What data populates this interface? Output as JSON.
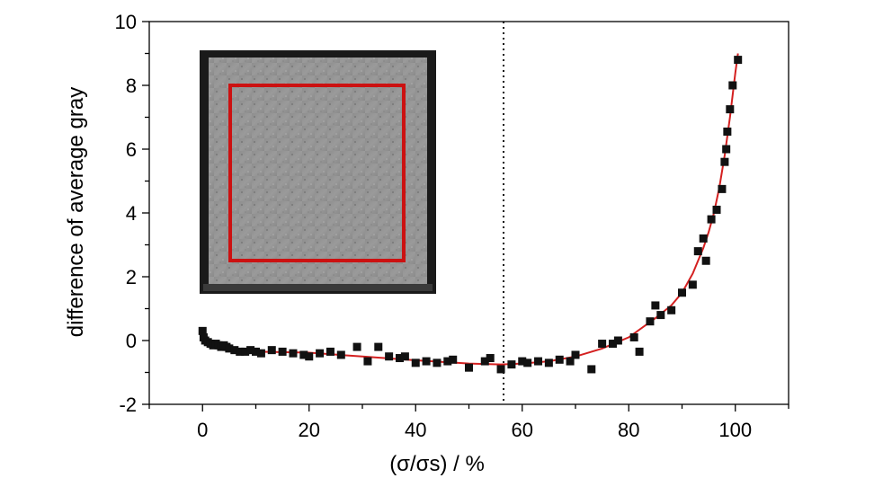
{
  "chart_data": {
    "type": "scatter",
    "xlabel": "(σ/σs) / %",
    "ylabel": "difference of average gray",
    "xlim": [
      -10,
      110
    ],
    "ylim": [
      -2,
      10
    ],
    "x_ticks": [
      0,
      20,
      40,
      60,
      80,
      100
    ],
    "y_ticks": [
      -2,
      0,
      2,
      4,
      6,
      8,
      10
    ],
    "x_tick_labels": [
      "0",
      "20",
      "40",
      "60",
      "80",
      "100"
    ],
    "y_tick_labels": [
      "-2",
      "0",
      "2",
      "4",
      "6",
      "8",
      "10"
    ],
    "grid": false,
    "reference_line_x": 56.5,
    "marker_color": "#111111",
    "fit_color": "#d42020",
    "inset_frame_color": "#cc1111",
    "series": [
      {
        "points": [
          [
            0,
            0.3
          ],
          [
            0.2,
            0.1
          ],
          [
            0.5,
            0.0
          ],
          [
            1,
            -0.05
          ],
          [
            1.5,
            -0.1
          ],
          [
            2,
            -0.15
          ],
          [
            2.5,
            -0.1
          ],
          [
            3,
            -0.15
          ],
          [
            3.5,
            -0.2
          ],
          [
            4,
            -0.15
          ],
          [
            4.5,
            -0.2
          ],
          [
            5,
            -0.25
          ],
          [
            6,
            -0.3
          ],
          [
            7,
            -0.35
          ],
          [
            8,
            -0.35
          ],
          [
            9,
            -0.3
          ],
          [
            10,
            -0.35
          ],
          [
            11,
            -0.4
          ],
          [
            13,
            -0.3
          ],
          [
            15,
            -0.35
          ],
          [
            17,
            -0.4
          ],
          [
            19,
            -0.45
          ],
          [
            20,
            -0.5
          ],
          [
            22,
            -0.4
          ],
          [
            24,
            -0.35
          ],
          [
            26,
            -0.45
          ],
          [
            29,
            -0.2
          ],
          [
            31,
            -0.65
          ],
          [
            33,
            -0.2
          ],
          [
            35,
            -0.5
          ],
          [
            37,
            -0.55
          ],
          [
            38,
            -0.5
          ],
          [
            40,
            -0.7
          ],
          [
            42,
            -0.65
          ],
          [
            44,
            -0.7
          ],
          [
            46,
            -0.65
          ],
          [
            47,
            -0.6
          ],
          [
            50,
            -0.85
          ],
          [
            53,
            -0.65
          ],
          [
            54,
            -0.55
          ],
          [
            56,
            -0.9
          ],
          [
            58,
            -0.75
          ],
          [
            60,
            -0.65
          ],
          [
            61,
            -0.7
          ],
          [
            63,
            -0.65
          ],
          [
            65,
            -0.7
          ],
          [
            67,
            -0.6
          ],
          [
            69,
            -0.65
          ],
          [
            70,
            -0.45
          ],
          [
            73,
            -0.9
          ],
          [
            75,
            -0.1
          ],
          [
            77,
            -0.1
          ],
          [
            78,
            0.0
          ],
          [
            81,
            0.1
          ],
          [
            82,
            -0.35
          ],
          [
            84,
            0.6
          ],
          [
            85,
            1.1
          ],
          [
            86,
            0.8
          ],
          [
            88,
            0.95
          ],
          [
            90,
            1.5
          ],
          [
            92,
            1.75
          ],
          [
            93,
            2.8
          ],
          [
            94,
            3.2
          ],
          [
            94.5,
            2.5
          ],
          [
            95.5,
            3.8
          ],
          [
            96.5,
            4.1
          ],
          [
            97.5,
            4.75
          ],
          [
            98,
            5.6
          ],
          [
            98.3,
            6.0
          ],
          [
            98.5,
            6.55
          ],
          [
            99,
            7.25
          ],
          [
            99.5,
            8.0
          ],
          [
            100.5,
            8.8
          ]
        ]
      }
    ],
    "fit_curve": [
      [
        0,
        0.15
      ],
      [
        2,
        -0.1
      ],
      [
        5,
        -0.25
      ],
      [
        10,
        -0.35
      ],
      [
        20,
        -0.38
      ],
      [
        30,
        -0.5
      ],
      [
        40,
        -0.62
      ],
      [
        50,
        -0.72
      ],
      [
        56,
        -0.75
      ],
      [
        60,
        -0.72
      ],
      [
        65,
        -0.65
      ],
      [
        70,
        -0.5
      ],
      [
        75,
        -0.25
      ],
      [
        80,
        0.1
      ],
      [
        85,
        0.7
      ],
      [
        88,
        1.1
      ],
      [
        90,
        1.5
      ],
      [
        92,
        2.1
      ],
      [
        94,
        2.9
      ],
      [
        95,
        3.4
      ],
      [
        96,
        4.0
      ],
      [
        97,
        4.8
      ],
      [
        98,
        5.8
      ],
      [
        99,
        7.0
      ],
      [
        100,
        8.4
      ],
      [
        100.5,
        9.0
      ]
    ]
  }
}
